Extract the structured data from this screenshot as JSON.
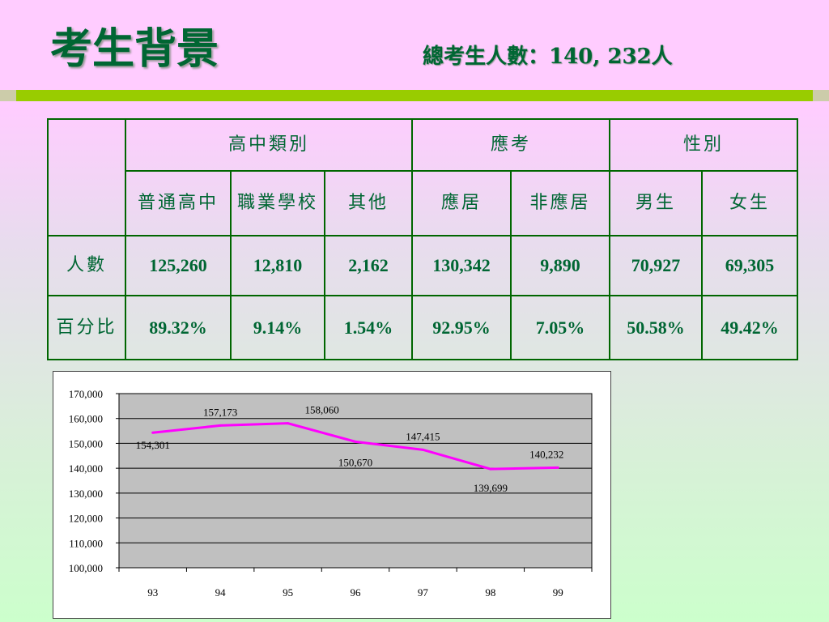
{
  "header": {
    "title": "考生背景",
    "subtitle": "總考生人數：140, 232人"
  },
  "table": {
    "group_headers": [
      "高中類別",
      "應考",
      "性別"
    ],
    "sub_headers": [
      "普通高中",
      "職業學校",
      "其他",
      "應居",
      "非應居",
      "男生",
      "女生"
    ],
    "rows": [
      {
        "label": "人數",
        "values": [
          "125,260",
          "12,810",
          "2,162",
          "130,342",
          "9,890",
          "70,927",
          "69,305"
        ]
      },
      {
        "label": "百分比",
        "values": [
          "89.32%",
          "9.14%",
          "1.54%",
          "92.95%",
          "7.05%",
          "50.58%",
          "49.42%"
        ]
      }
    ]
  },
  "colors": {
    "text_green": "#006633",
    "border_green": "#006600",
    "accent_bar": "#99cc00",
    "line": "#ff00ff",
    "plot_bg": "#c0c0c0"
  },
  "chart_data": {
    "type": "line",
    "categories": [
      "93",
      "94",
      "95",
      "96",
      "97",
      "98",
      "99"
    ],
    "values": [
      154301,
      157173,
      158060,
      150670,
      147415,
      139699,
      140232
    ],
    "data_labels": [
      "154,301",
      "157,173",
      "158,060",
      "150,670",
      "147,415",
      "139,699",
      "140,232"
    ],
    "yticks": [
      "100,000",
      "110,000",
      "120,000",
      "130,000",
      "140,000",
      "150,000",
      "160,000",
      "170,000"
    ],
    "ylim": [
      100000,
      170000
    ],
    "grid": true,
    "title": "",
    "xlabel": "",
    "ylabel": ""
  }
}
